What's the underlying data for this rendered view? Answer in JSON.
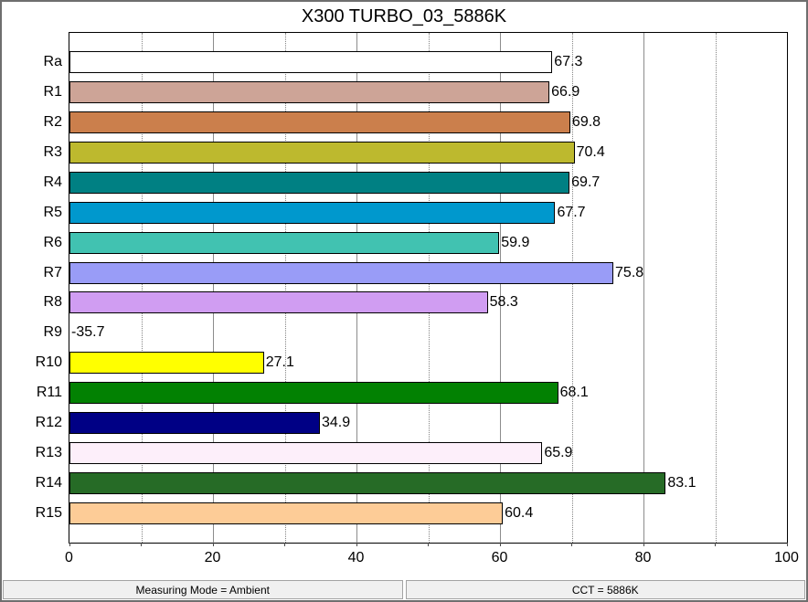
{
  "window_title": "X300 TURBO_03_5886K",
  "chart_data": {
    "type": "bar",
    "orientation": "horizontal",
    "title": "X300 TURBO_03_5886K",
    "categories": [
      "Ra",
      "R1",
      "R2",
      "R3",
      "R4",
      "R5",
      "R6",
      "R7",
      "R8",
      "R9",
      "R10",
      "R11",
      "R12",
      "R13",
      "R14",
      "R15"
    ],
    "values": [
      67.3,
      66.9,
      69.8,
      70.4,
      69.7,
      67.7,
      59.9,
      75.8,
      58.3,
      -35.7,
      27.1,
      68.1,
      34.9,
      65.9,
      83.1,
      60.4
    ],
    "bar_colors": [
      "#ffffff",
      "#cda497",
      "#cb7f4c",
      "#bdb92e",
      "#008083",
      "#0098cd",
      "#41c2b1",
      "#999cf7",
      "#d09df2",
      null,
      "#ffff00",
      "#028102",
      "#000085",
      "#fdeffa",
      "#266b26",
      "#fdcc97"
    ],
    "xlabel": "",
    "ylabel": "",
    "xlim": [
      0,
      100
    ],
    "x_ticks": [
      0,
      20,
      40,
      60,
      80,
      100
    ],
    "grid": "vertical: dotted minor lines every 10, solid gray major lines every 20",
    "legend": "none",
    "value_labels": "at end of each bar, one decimal place",
    "note": "R9 is negative (-35.7) so no bar is drawn, only the value label at the axis"
  },
  "status_bar": {
    "left": "Measuring Mode = Ambient",
    "right": "CCT = 5886K"
  }
}
